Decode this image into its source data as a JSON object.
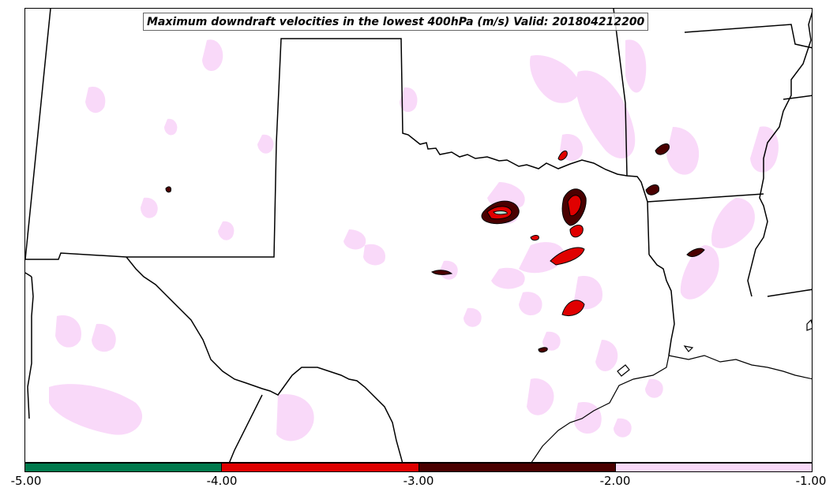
{
  "title": "Maximum downdraft velocities in the lowest 400hPa (m/s) Valid: 201804212200",
  "colorbar": {
    "ticks": [
      "-5.00",
      "-4.00",
      "-3.00",
      "-2.00",
      "-1.00"
    ],
    "segments": [
      {
        "range": [
          -5,
          -4
        ],
        "color": "#007a4d"
      },
      {
        "range": [
          -4,
          -3
        ],
        "color": "#e00000"
      },
      {
        "range": [
          -3,
          -2
        ],
        "color": "#4a0000"
      },
      {
        "range": [
          -2,
          -1
        ],
        "color": "#f9d9f9"
      }
    ]
  },
  "colors": {
    "weak": "#f9d9f9",
    "moderate": "#4a0000",
    "strong": "#e00000",
    "extreme": "#007a4d",
    "boundary": "#000000"
  }
}
